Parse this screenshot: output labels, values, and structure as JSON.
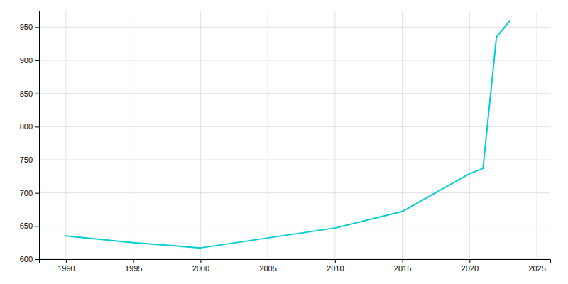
{
  "chart_data": {
    "type": "line",
    "x": [
      1990,
      1995,
      2000,
      2005,
      2010,
      2015,
      2020,
      2021,
      2022,
      2023
    ],
    "values": [
      635,
      625,
      617,
      632,
      647,
      672,
      729,
      737,
      935,
      960
    ],
    "color": "#00CED1",
    "xlim": [
      1988,
      2026
    ],
    "ylim": [
      600,
      975
    ],
    "xticks": [
      1990,
      1995,
      2000,
      2005,
      2010,
      2015,
      2020,
      2025
    ],
    "yticks": [
      600,
      650,
      700,
      750,
      800,
      850,
      900,
      950
    ],
    "grid": true
  }
}
